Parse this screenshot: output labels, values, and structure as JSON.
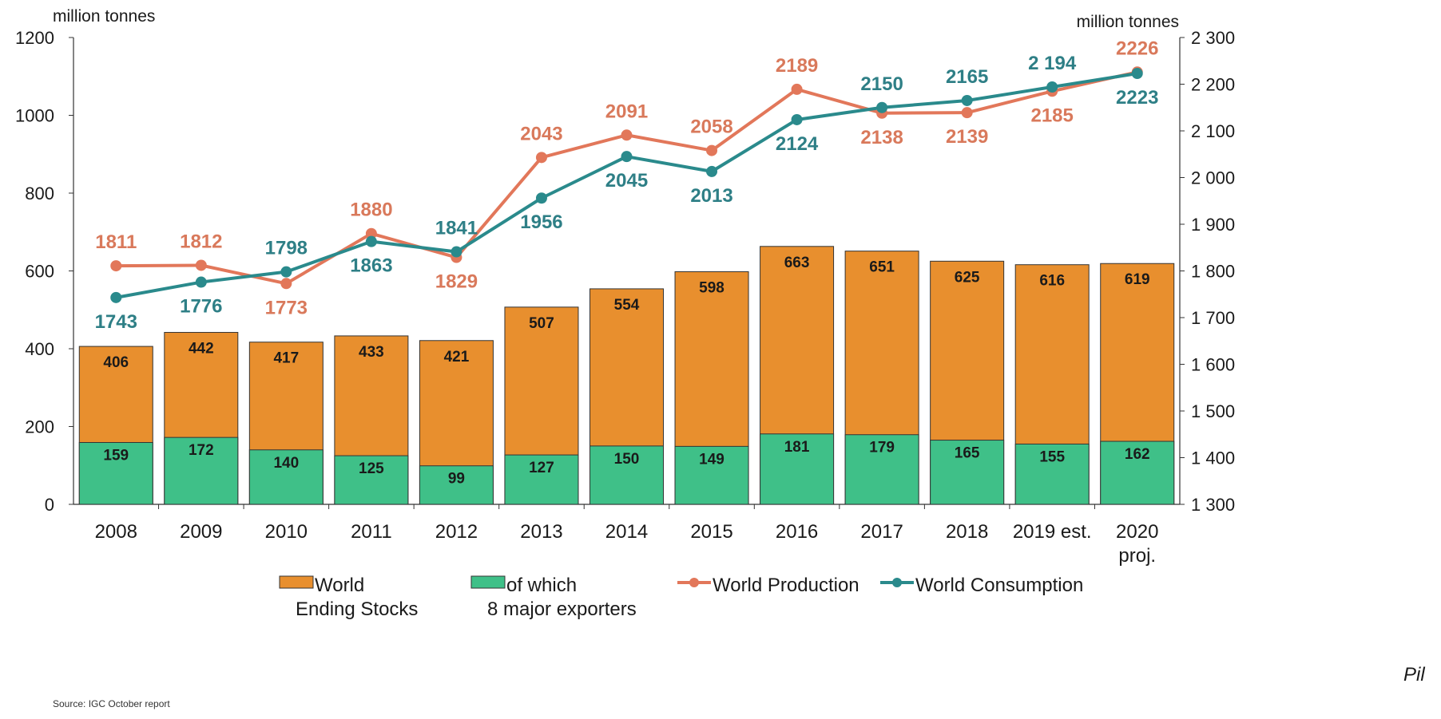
{
  "chart_data": {
    "type": "bar+line",
    "categories": [
      "2008",
      "2009",
      "2010",
      "2011",
      "2012",
      "2013",
      "2014",
      "2015",
      "2016",
      "2017",
      "2018",
      "2019 est.",
      "2020 proj."
    ],
    "left_axis": {
      "unit_label": "million tonnes",
      "ylim": [
        0,
        1200
      ],
      "ticks": [
        0,
        200,
        400,
        600,
        800,
        1000,
        1200
      ]
    },
    "right_axis": {
      "unit_label": "million tonnes",
      "ylim": [
        1300,
        2300
      ],
      "ticks": [
        "1 300",
        "1 400",
        "1 500",
        "1 600",
        "1 700",
        "1 800",
        "1 900",
        "2 000",
        "2 100",
        "2 200",
        "2 300"
      ]
    },
    "bars": [
      {
        "name": "World Ending Stocks",
        "color": "#e88f2e",
        "values": [
          406,
          442,
          417,
          433,
          421,
          507,
          554,
          598,
          663,
          651,
          625,
          616,
          619
        ]
      },
      {
        "name": "of which 8 major exporters",
        "color": "#3fc088",
        "values": [
          159,
          172,
          140,
          125,
          99,
          127,
          150,
          149,
          181,
          179,
          165,
          155,
          162
        ]
      }
    ],
    "lines": [
      {
        "name": "World Production",
        "color": "#e2775a",
        "values": [
          1811,
          1812,
          1773,
          1880,
          1829,
          2043,
          2091,
          2058,
          2189,
          2138,
          2139,
          2185,
          2226
        ],
        "labels": [
          "1811",
          "1812",
          "1773",
          "1880",
          "1829",
          "2043",
          "2091",
          "2058",
          "2189",
          "2138",
          "2139",
          "2185",
          "2226"
        ]
      },
      {
        "name": "World Consumption",
        "color": "#2a8a8c",
        "values": [
          1743,
          1776,
          1798,
          1863,
          1841,
          1956,
          2045,
          2013,
          2124,
          2150,
          2165,
          2194,
          2223
        ],
        "labels": [
          "1743",
          "1776",
          "1798",
          "1863",
          "1841",
          "1956",
          "2045",
          "2013",
          "2124",
          "2150",
          "2165",
          "2 194",
          "2223"
        ]
      }
    ],
    "legend": {
      "placement": "bottom",
      "items": [
        {
          "kind": "bar",
          "color": "#e88f2e",
          "lines": [
            "World",
            "Ending Stocks"
          ]
        },
        {
          "kind": "bar",
          "color": "#3fc088",
          "lines": [
            "of which",
            "8 major exporters"
          ]
        },
        {
          "kind": "line",
          "color": "#e2775a",
          "lines": [
            "World Production"
          ]
        },
        {
          "kind": "line",
          "color": "#2a8a8c",
          "lines": [
            "World Consumption"
          ]
        }
      ]
    },
    "grid": false
  },
  "source_note": "Source: IGC October report",
  "corner_text": "Pil"
}
